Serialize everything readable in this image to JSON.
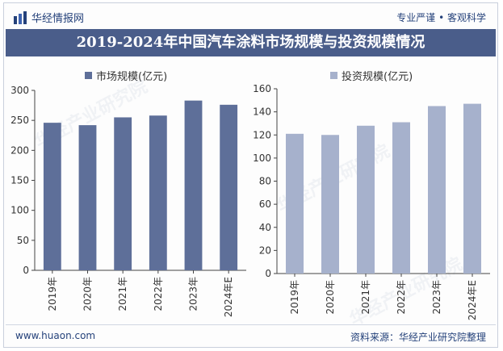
{
  "header": {
    "brand_name": "华经情报网",
    "slogan": "专业严谨 • 客观科学",
    "title": "2019-2024年中国汽车涂料市场规模与投资规模情况"
  },
  "footer": {
    "website": "www.huaon.com",
    "source": "资料来源：华经产业研究院整理"
  },
  "watermark_text": "华经产业研究院",
  "chart_data": [
    {
      "type": "bar",
      "categories": [
        "2019年",
        "2020年",
        "2021年",
        "2022年",
        "2023年",
        "2024年E"
      ],
      "series": [
        {
          "name": "市场规模(亿元)",
          "values": [
            246,
            242,
            255,
            258,
            283,
            276
          ],
          "color": "#5e6f99"
        }
      ],
      "ylim": [
        0,
        300
      ],
      "yticks": [
        0,
        50,
        100,
        150,
        200,
        250,
        300
      ],
      "xlabel": "",
      "ylabel": "",
      "legend": "top-left",
      "grid": false
    },
    {
      "type": "bar",
      "categories": [
        "2019年",
        "2020年",
        "2021年",
        "2022年",
        "2023年",
        "2024年E"
      ],
      "series": [
        {
          "name": "投资规模(亿元)",
          "values": [
            121,
            120,
            128,
            131,
            145,
            147
          ],
          "color": "#a6b1cc"
        }
      ],
      "ylim": [
        0,
        160
      ],
      "yticks": [
        0,
        20,
        40,
        60,
        80,
        100,
        120,
        140,
        160
      ],
      "xlabel": "",
      "ylabel": "",
      "legend": "top-left",
      "grid": false
    }
  ]
}
